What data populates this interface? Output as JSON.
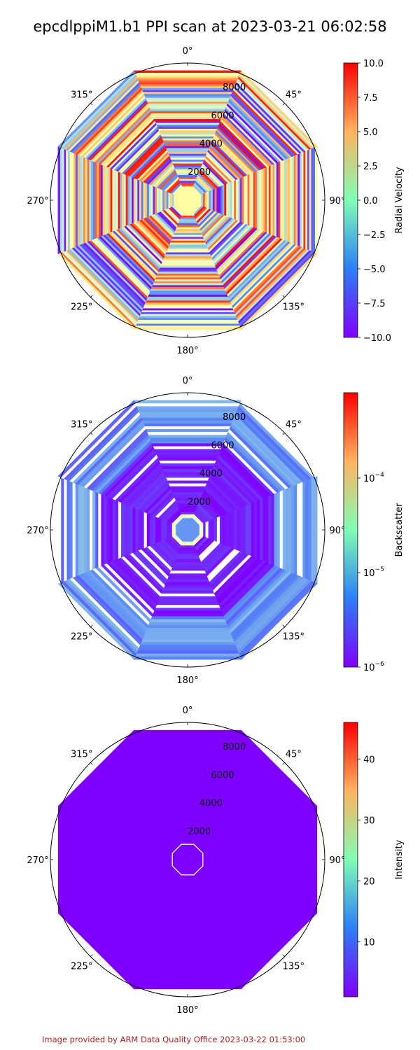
{
  "title": "epcdlppiM1.b1 PPI scan at 2023-03-21 06:02:58",
  "footer": "Image provided by ARM Data Quality Office 2023-03-22 01:53:00",
  "colors": {
    "colormap": "rainbow",
    "background": "#ffffff",
    "axis": "#000000",
    "footer": "#b22222"
  },
  "chart_data": [
    {
      "type": "polar_ppi",
      "variable": "Radial Velocity",
      "colorbar_label": "Radial Velocity",
      "colorbar_scale": "linear",
      "vmin": -10.0,
      "vmax": 10.0,
      "colorbar_ticks": [
        "10.0",
        "7.5",
        "5.0",
        "2.5",
        "0.0",
        "−2.5",
        "−5.0",
        "−7.5",
        "−10.0"
      ],
      "colorbar_tick_values": [
        10,
        7.5,
        5,
        2.5,
        0,
        -2.5,
        -5,
        -7.5,
        -10
      ],
      "theta_ticks": [
        "0°",
        "45°",
        "90°",
        "135°",
        "180°",
        "225°",
        "270°",
        "315°"
      ],
      "theta_values": [
        0,
        45,
        90,
        135,
        180,
        225,
        270,
        315
      ],
      "r_ticks": [
        "2000",
        "4000",
        "6000",
        "8000"
      ],
      "r_values": [
        2000,
        4000,
        6000,
        8000
      ],
      "r_max": 9000,
      "azimuth_count": 8,
      "range_extent": 8500,
      "pattern": "striped"
    },
    {
      "type": "polar_ppi",
      "variable": "Backscatter",
      "colorbar_label": "Backscatter",
      "colorbar_scale": "log",
      "vmin": 1e-06,
      "vmax": 0.0008,
      "colorbar_ticks": [
        "10",
        "10",
        "10"
      ],
      "colorbar_tick_exponents": [
        "−4",
        "−5",
        "−6"
      ],
      "colorbar_tick_values": [
        0.0001,
        1e-05,
        1e-06
      ],
      "theta_ticks": [
        "0°",
        "45°",
        "90°",
        "135°",
        "180°",
        "225°",
        "270°",
        "315°"
      ],
      "theta_values": [
        0,
        45,
        90,
        135,
        180,
        225,
        270,
        315
      ],
      "r_ticks": [
        "2000",
        "4000",
        "6000",
        "8000"
      ],
      "r_values": [
        2000,
        4000,
        6000,
        8000
      ],
      "r_max": 9000,
      "azimuth_count": 8,
      "range_extent": 8500,
      "pattern": "low-with-near-ring"
    },
    {
      "type": "polar_ppi",
      "variable": "Intensity",
      "colorbar_label": "Intensity",
      "colorbar_scale": "linear",
      "vmin": 1,
      "vmax": 46,
      "colorbar_ticks": [
        "40",
        "30",
        "20",
        "10"
      ],
      "colorbar_tick_values": [
        40,
        30,
        20,
        10
      ],
      "theta_ticks": [
        "0°",
        "45°",
        "90°",
        "135°",
        "180°",
        "225°",
        "270°",
        "315°"
      ],
      "theta_values": [
        0,
        45,
        90,
        135,
        180,
        225,
        270,
        315
      ],
      "r_ticks": [
        "2000",
        "4000",
        "6000",
        "8000"
      ],
      "r_values": [
        2000,
        4000,
        6000,
        8000
      ],
      "r_max": 9000,
      "azimuth_count": 8,
      "range_extent": 8500,
      "pattern": "uniform-low-with-near-ring"
    }
  ]
}
